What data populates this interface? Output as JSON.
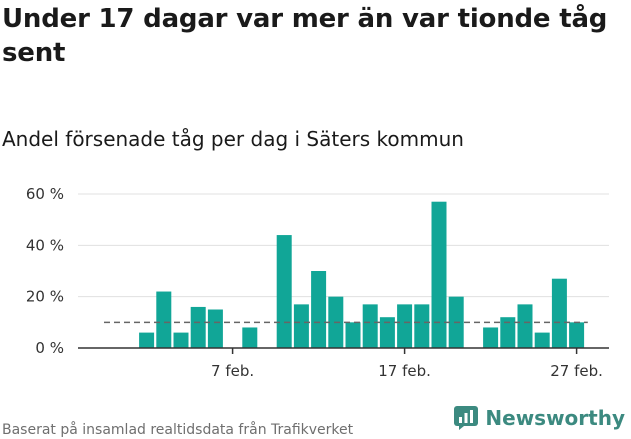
{
  "title": "Under 17 dagar var mer än var tionde tåg sent",
  "subtitle": "Andel försenade tåg per dag i Säters kommun",
  "source": "Baserat på insamlad realtidsdata från Trafikverket",
  "brand": "Newsworthy",
  "colors": {
    "bar": "#11a697",
    "average_line": "#666666",
    "grid": "#e0e0e0",
    "axis": "#333333",
    "brand": "#3c8a80"
  },
  "chart_data": {
    "type": "bar",
    "title": "Andel försenade tåg per dag i Säters kommun",
    "xlabel": "",
    "ylabel": "",
    "x_unit": "day of February",
    "x": [
      2,
      3,
      4,
      5,
      6,
      8,
      10,
      11,
      12,
      13,
      14,
      15,
      16,
      17,
      18,
      19,
      20,
      22,
      23,
      24,
      25,
      26,
      27
    ],
    "values": [
      6,
      22,
      6,
      16,
      15,
      8,
      44,
      17,
      30,
      20,
      10,
      17,
      12,
      17,
      17,
      57,
      20,
      8,
      12,
      17,
      6,
      27,
      10
    ],
    "series": [
      {
        "name": "",
        "values": [
          6,
          22,
          6,
          16,
          15,
          8,
          44,
          17,
          30,
          20,
          10,
          17,
          12,
          17,
          17,
          57,
          20,
          8,
          12,
          17,
          6,
          27,
          10
        ]
      }
    ],
    "xlim": [
      1,
      28
    ],
    "ylim": [
      0,
      60
    ],
    "y_ticks": [
      0,
      20,
      40,
      60
    ],
    "y_tick_labels": [
      "0 %",
      "20 %",
      "40 %",
      "60 %"
    ],
    "x_ticks": [
      7,
      17,
      27
    ],
    "x_tick_labels": [
      "7 feb.",
      "17 feb.",
      "27 feb."
    ],
    "reference_line": {
      "style": "dashed",
      "value": 10
    },
    "grid": true,
    "legend": "none"
  }
}
